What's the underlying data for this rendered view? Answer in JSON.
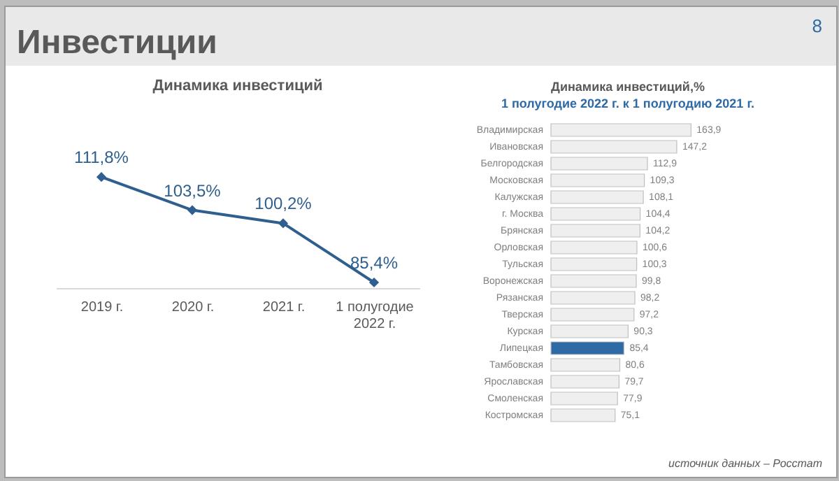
{
  "chart_data": [
    {
      "type": "line",
      "title": "Динамика инвестиций",
      "annotations": [
        "Инвестиции",
        "8"
      ],
      "categories": [
        "2019 г.",
        "2020 г.",
        "2021 г.",
        "1 полугодие 2022 г."
      ],
      "series": [
        {
          "color": "#2f5f8f",
          "values": [
            111.8,
            103.5,
            100.2,
            85.4
          ],
          "value_labels": [
            "111,8%",
            "103,5%",
            "100,2%",
            "85,4%"
          ]
        }
      ],
      "marker": "diamond",
      "line_style": "solid",
      "grid": false
    },
    {
      "type": "bar",
      "orientation": "horizontal",
      "title": "Динамика инвестиций,%",
      "subtitle": "1 полугодие 2022 г. к 1 полугодию 2021 г.",
      "annotations": [
        "источник данных – Росстат"
      ],
      "categories": [
        "Владимирская",
        "Ивановская",
        "Белгородская",
        "Московская",
        "Калужская",
        "г. Москва",
        "Брянская",
        "Орловская",
        "Тульская",
        "Воронежская",
        "Рязанская",
        "Тверская",
        "Курская",
        "Липецкая",
        "Тамбовская",
        "Ярославская",
        "Смоленская",
        "Костромская"
      ],
      "values": [
        163.9,
        147.2,
        112.9,
        109.3,
        108.1,
        104.4,
        104.2,
        100.6,
        100.3,
        99.8,
        98.2,
        97.2,
        90.3,
        85.4,
        80.6,
        79.7,
        77.9,
        75.1
      ],
      "value_labels": [
        "163,9",
        "147,2",
        "112,9",
        "109,3",
        "108,1",
        "104,4",
        "104,2",
        "100,6",
        "100,3",
        "99,8",
        "98,2",
        "97,2",
        "90,3",
        "85,4",
        "80,6",
        "79,7",
        "77,9",
        "75,1"
      ],
      "colors": [
        "#efefef",
        "#efefef",
        "#efefef",
        "#efefef",
        "#efefef",
        "#efefef",
        "#efefef",
        "#efefef",
        "#efefef",
        "#efefef",
        "#efefef",
        "#efefef",
        "#efefef",
        "#2e6aa6",
        "#efefef",
        "#efefef",
        "#efefef",
        "#efefef"
      ]
    }
  ]
}
